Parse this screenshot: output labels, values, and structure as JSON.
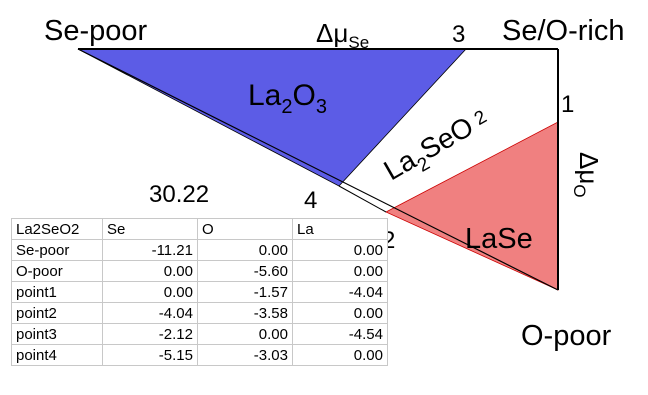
{
  "title_value": "30.22",
  "corners": {
    "se_poor": "Se-poor",
    "se_o_rich": "Se/O-rich",
    "o_poor": "O-poor"
  },
  "axes": {
    "delta_mu_symbol": "Δμ",
    "se_subscript": "Se",
    "o_subscript": "O"
  },
  "phases": {
    "la2o3": {
      "main": "La",
      "sub1": "2",
      "mid": "O",
      "sub2": "3",
      "color": "#5c5ce6"
    },
    "la2seo2": {
      "main": "La",
      "sub1": "2",
      "mid": "SeO",
      "sub2": "2",
      "color": "#ffffff"
    },
    "lase": {
      "label": "LaSe",
      "color": "#f08080"
    }
  },
  "points": {
    "p1": "1",
    "p2": "2",
    "p3": "3",
    "p4": "4"
  },
  "table": {
    "headers": [
      "La2SeO2",
      "Se",
      "O",
      "La"
    ],
    "rows": [
      [
        "Se-poor",
        "-11.21",
        "0.00",
        "0.00"
      ],
      [
        "O-poor",
        "0.00",
        "-5.60",
        "0.00"
      ],
      [
        "point1",
        "0.00",
        "-1.57",
        "-4.04"
      ],
      [
        "point2",
        "-4.04",
        "-3.58",
        "0.00"
      ],
      [
        "point3",
        "-2.12",
        "0.00",
        "-4.54"
      ],
      [
        "point4",
        "-5.15",
        "-3.03",
        "0.00"
      ]
    ]
  }
}
